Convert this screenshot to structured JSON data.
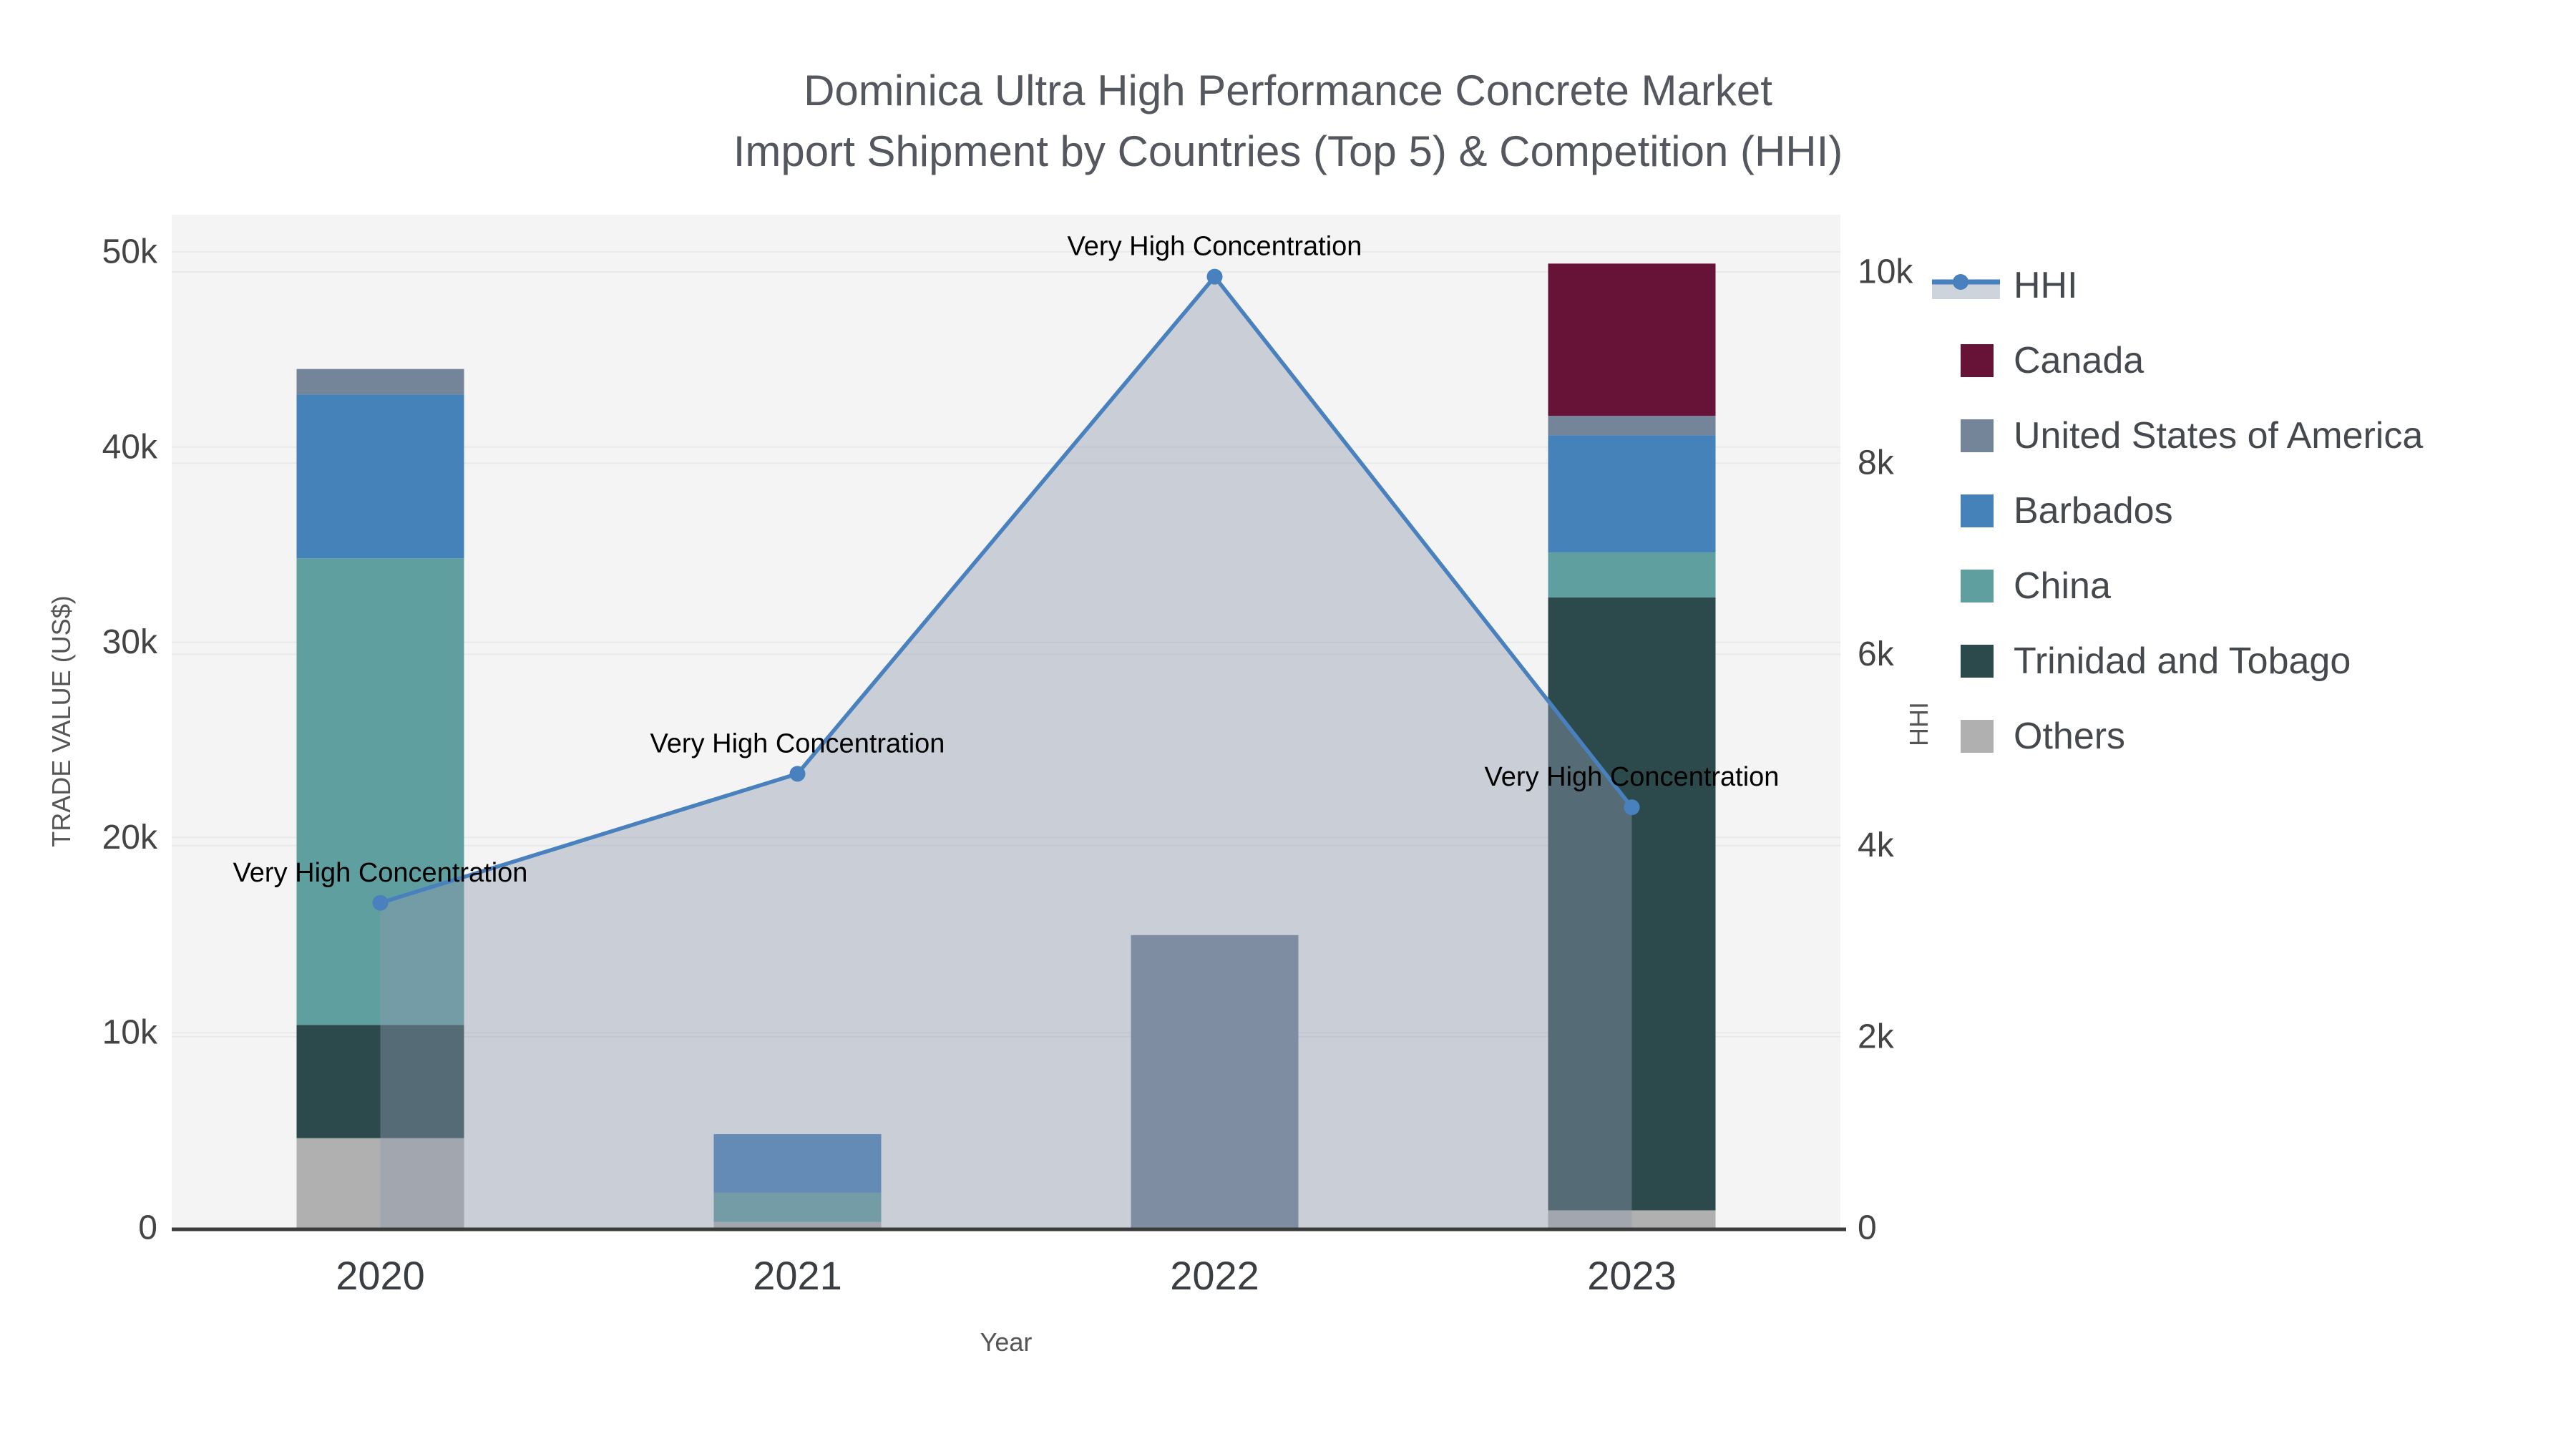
{
  "title": {
    "line1": "Dominica Ultra High Performance Concrete Market",
    "line2": "Import Shipment by Countries (Top 5) & Competition (HHI)"
  },
  "colors": {
    "page_background": "#ffffff",
    "plot_background": "#f4f4f4",
    "gridline": "#e8e9e9",
    "axis_line": "#3a3a3a",
    "tick_text": "#444444",
    "x_tick_text": "#3a3d41",
    "axis_title_text": "#555555",
    "annotation_text": "#000000",
    "hhi_line": "#4881bd",
    "hhi_area_fill": "rgba(142,153,174,0.42)",
    "hhi_legend_band": "#cdd4db"
  },
  "chart_data": {
    "type": "combo: stacked bar + line with area fill",
    "categories": [
      "2020",
      "2021",
      "2022",
      "2023"
    ],
    "bar_series": [
      {
        "name": "Others",
        "color": "#b0b0b0",
        "values": [
          4600,
          300,
          0,
          900
        ]
      },
      {
        "name": "Trinidad and Tobago",
        "color": "#2c4a4c",
        "values": [
          5800,
          0,
          0,
          31400
        ]
      },
      {
        "name": "China",
        "color": "#5f9fa0",
        "values": [
          23900,
          1500,
          0,
          2300
        ]
      },
      {
        "name": "Barbados",
        "color": "#4682ba",
        "values": [
          8400,
          3000,
          0,
          6000
        ]
      },
      {
        "name": "United States of America",
        "color": "#74859a",
        "values": [
          1300,
          0,
          15000,
          1000
        ]
      },
      {
        "name": "Canada",
        "color": "#661337",
        "values": [
          0,
          0,
          0,
          7800
        ]
      }
    ],
    "line_series": {
      "name": "HHI",
      "values": [
        3400,
        4750,
        9950,
        4400
      ]
    },
    "annotations": [
      {
        "text": "Very High Concentration",
        "category": "2020",
        "hhi_value": 3400
      },
      {
        "text": "Very High Concentration",
        "category": "2021",
        "hhi_value": 4750
      },
      {
        "text": "Very High Concentration",
        "category": "2022",
        "hhi_value": 9950
      },
      {
        "text": "Very High Concentration",
        "category": "2023",
        "hhi_value": 4400
      }
    ],
    "x_axis": {
      "title": "Year"
    },
    "left_axis": {
      "title": "TRADE VALUE (US$)",
      "tick_labels": [
        "0",
        "10k",
        "20k",
        "30k",
        "40k",
        "50k"
      ],
      "tick_values": [
        0,
        10000,
        20000,
        30000,
        40000,
        50000
      ],
      "range": [
        0,
        50000
      ]
    },
    "right_axis": {
      "title": "HHI",
      "tick_labels": [
        "0",
        "2k",
        "4k",
        "6k",
        "8k",
        "10k"
      ],
      "tick_values": [
        0,
        2000,
        4000,
        6000,
        8000,
        10000
      ],
      "range": [
        0,
        10000
      ]
    },
    "legend_position": "right",
    "grid": true
  },
  "legend": {
    "items": [
      {
        "id": "hhi",
        "label": "HHI",
        "type": "line",
        "color": "#4881bd"
      },
      {
        "id": "canada",
        "label": "Canada",
        "type": "square",
        "color": "#661337"
      },
      {
        "id": "united-states-of-america",
        "label": "United States of America",
        "type": "square",
        "color": "#74859a"
      },
      {
        "id": "barbados",
        "label": "Barbados",
        "type": "square",
        "color": "#4682ba"
      },
      {
        "id": "china",
        "label": "China",
        "type": "square",
        "color": "#5f9fa0"
      },
      {
        "id": "trinidad-and-tobago",
        "label": "Trinidad and Tobago",
        "type": "square",
        "color": "#2c4a4c"
      },
      {
        "id": "others",
        "label": "Others",
        "type": "square",
        "color": "#b0b0b0"
      }
    ]
  }
}
